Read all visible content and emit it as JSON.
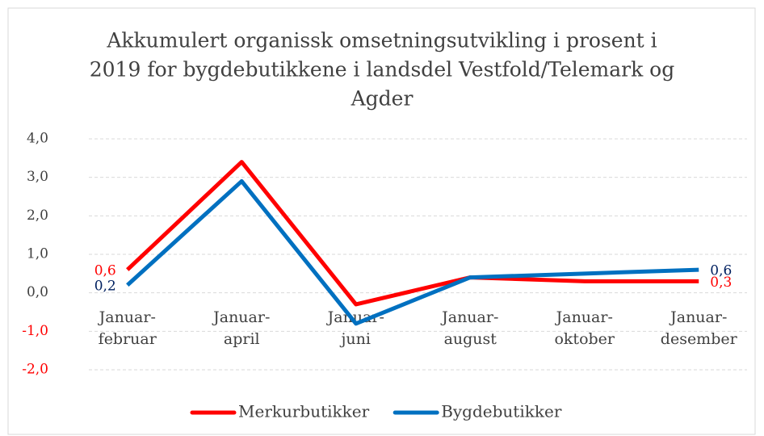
{
  "chart_data": {
    "type": "line",
    "title": [
      "Akkumulert organissk omsetningsutvikling i prosent i",
      "2019 for bygdebutikkene i landsdel Vestfold/Telemark og",
      "Agder"
    ],
    "categories": [
      [
        "Januar-",
        "februar"
      ],
      [
        "Januar-",
        "april"
      ],
      [
        "Januar-",
        "juni"
      ],
      [
        "Januar-",
        "august"
      ],
      [
        "Januar-",
        "oktober"
      ],
      [
        "Januar-",
        "desember"
      ]
    ],
    "series": [
      {
        "name": "Merkurbutikker",
        "color": "#ff0000",
        "values": [
          0.6,
          3.4,
          -0.3,
          0.4,
          0.3,
          0.3
        ],
        "value_labels": [
          "0,6",
          null,
          null,
          null,
          null,
          "0,3"
        ]
      },
      {
        "name": "Bygdebutikker",
        "color": "#0070c0",
        "values": [
          0.2,
          2.9,
          -0.8,
          0.4,
          0.5,
          0.6
        ],
        "value_labels": [
          "0,2",
          null,
          null,
          null,
          null,
          "0,6"
        ],
        "label_color": "#002060"
      }
    ],
    "ylim": [
      -2,
      4
    ],
    "yticks": [
      {
        "value": -2,
        "label": "-2,0"
      },
      {
        "value": -1,
        "label": "-1,0"
      },
      {
        "value": 0,
        "label": "0,0"
      },
      {
        "value": 1,
        "label": "1,0"
      },
      {
        "value": 2,
        "label": "2,0"
      },
      {
        "value": 3,
        "label": "3,0"
      },
      {
        "value": 4,
        "label": "4,0"
      }
    ],
    "negative_tick_color": "#ff0000",
    "grid": true,
    "legend": "bottom"
  }
}
